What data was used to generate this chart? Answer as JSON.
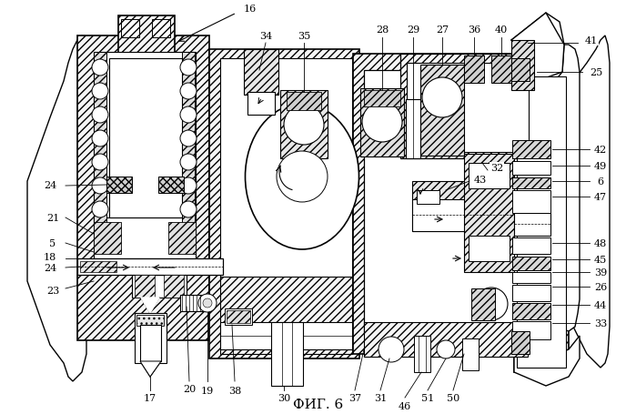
{
  "title": "ФИГ. 6",
  "bg_color": "#ffffff",
  "fig_width": 6.99,
  "fig_height": 4.56
}
